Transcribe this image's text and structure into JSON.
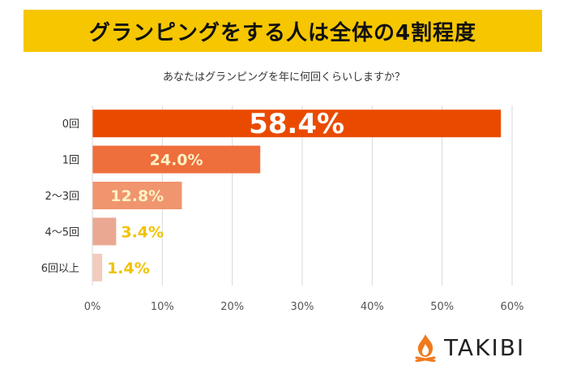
{
  "banner": {
    "title": "グランピングをする人は全体の4割程度"
  },
  "chart_data": {
    "type": "bar",
    "orientation": "horizontal",
    "title": "グランピングをする人は全体の4割程度",
    "subtitle": "あなたはグランピングを年に何回くらいしますか？",
    "categories": [
      "0回",
      "1回",
      "2～3回",
      "4～5回",
      "6回以上"
    ],
    "values": [
      58.4,
      24.0,
      12.8,
      3.4,
      1.4
    ],
    "value_labels": [
      "58.4%",
      "24.0%",
      "12.8%",
      "3.4%",
      "1.4%"
    ],
    "bar_colors": [
      "#ea4a00",
      "#ee6e3c",
      "#f0956e",
      "#eaa892",
      "#f2cbbd"
    ],
    "xlim": [
      0,
      60
    ],
    "x_ticks": [
      "0%",
      "10%",
      "20%",
      "30%",
      "40%",
      "50%",
      "60%"
    ],
    "grid": true,
    "xlabel": "",
    "ylabel": ""
  },
  "brand": {
    "name": "TAKIBI",
    "flame_color": "#f07a1e"
  }
}
